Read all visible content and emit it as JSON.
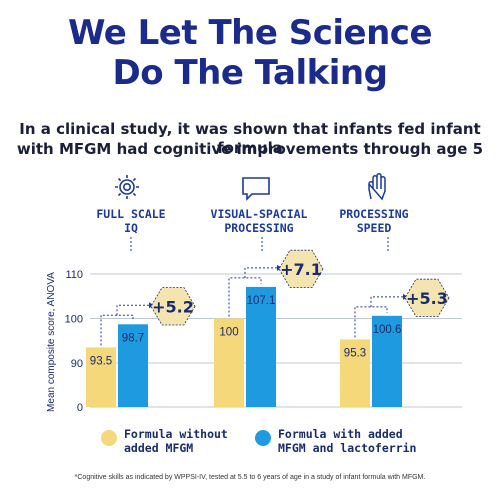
{
  "headline": {
    "line1": "We Let The Science",
    "line2": "Do The Talking"
  },
  "subheadline": {
    "line1": "In a clinical study, it was shown that infants fed infant formula",
    "line2": "with MFGM had cognitive improvements through age 5"
  },
  "metrics": [
    {
      "label_line1": "FULL SCALE",
      "label_line2": "IQ",
      "icon": "gear-icon"
    },
    {
      "label_line1": "VISUAL-SPACIAL",
      "label_line2": "PROCESSING",
      "icon": "speech-bubble-icon"
    },
    {
      "label_line1": "PROCESSING",
      "label_line2": "SPEED",
      "icon": "hand-icon"
    }
  ],
  "colors": {
    "without": "#f5d87a",
    "with": "#1e9be0",
    "hex_badge": "#f3e4b0",
    "text": "#1a2b6d"
  },
  "chart_data": {
    "type": "bar",
    "ylabel": "Mean composite score, ANOVA",
    "ylim": [
      0,
      110
    ],
    "yticks": [
      0,
      90,
      100,
      110
    ],
    "ytick_labels": [
      "0",
      "90",
      "100",
      "110"
    ],
    "grid": true,
    "categories": [
      "FULL SCALE IQ",
      "VISUAL-SPACIAL PROCESSING",
      "PROCESSING SPEED"
    ],
    "series": [
      {
        "name": "Formula without added MFGM",
        "values": [
          93.5,
          100,
          95.3
        ],
        "labels": [
          "93.5",
          "100",
          "95.3"
        ]
      },
      {
        "name": "Formula with added MFGM and lactoferrin",
        "values": [
          98.7,
          107.1,
          100.6
        ],
        "labels": [
          "98.7",
          "107.1",
          "100.6"
        ]
      }
    ],
    "differences": [
      "+5.2",
      "+7.1",
      "+5.3"
    ]
  },
  "legend": {
    "without_line1": "Formula without",
    "without_line2": "added MFGM",
    "with_line1": "Formula with added",
    "with_line2": "MFGM and lactoferrin"
  },
  "footnote": "*Cognitive skills as indicated by WPPSI-IV, tested at 5.5 to 6 years of age in a study of infant formula with MFGM."
}
